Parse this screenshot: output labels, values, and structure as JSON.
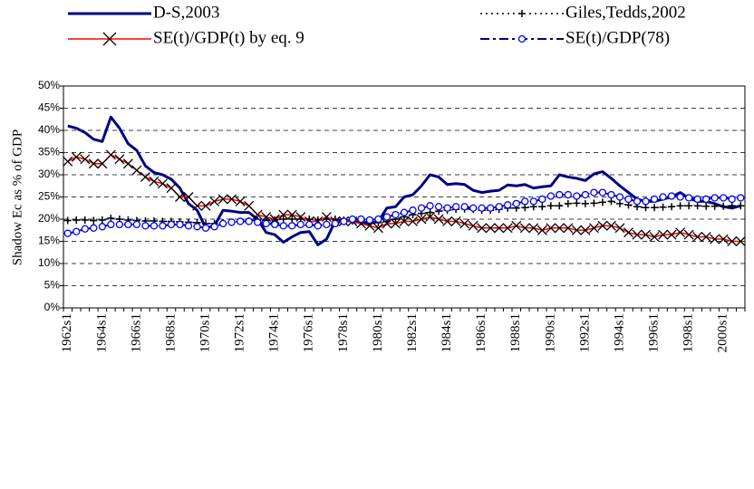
{
  "chart_data": {
    "type": "line",
    "y_label": "Shadow Ec as % of GDP",
    "legend": "top",
    "grid": true,
    "categories": [
      "1962s1",
      null,
      null,
      null,
      "1964s1",
      null,
      null,
      null,
      "1966s1",
      null,
      null,
      null,
      "1968s1",
      null,
      null,
      null,
      "1970s1",
      null,
      null,
      null,
      "1972s1",
      null,
      null,
      null,
      "1974s1",
      null,
      null,
      null,
      "1976s1",
      null,
      null,
      null,
      "1978s1",
      null,
      null,
      null,
      "1980s1",
      null,
      null,
      null,
      "1982s1",
      null,
      null,
      null,
      "1984s1",
      null,
      null,
      null,
      "1986s1",
      null,
      null,
      null,
      "1988s1",
      null,
      null,
      null,
      "1990s1",
      null,
      null,
      null,
      "1992s1",
      null,
      null,
      null,
      "1994s1",
      null,
      null,
      null,
      "1996s1",
      null,
      null,
      null,
      "1998s1",
      null,
      null,
      null,
      "2000s1",
      null,
      null
    ],
    "ylim": [
      0,
      50
    ],
    "yticks": [
      {
        "value": 0,
        "label": "0%"
      },
      {
        "value": 5,
        "label": "5%"
      },
      {
        "value": 10,
        "label": "10%"
      },
      {
        "value": 15,
        "label": "15%"
      },
      {
        "value": 20,
        "label": "20%"
      },
      {
        "value": 25,
        "label": "25%"
      },
      {
        "value": 30,
        "label": "30%"
      },
      {
        "value": 35,
        "label": "35%"
      },
      {
        "value": 40,
        "label": "40%"
      },
      {
        "value": 45,
        "label": "45%"
      },
      {
        "value": 50,
        "label": "50%"
      }
    ],
    "series": [
      {
        "name": "D-S,2003",
        "color": "#000080",
        "width": 3,
        "dash": "none",
        "marker": "none",
        "marker_color": "#000080",
        "values": [
          41,
          40.5,
          39.5,
          38,
          37.5,
          43,
          40.5,
          37,
          35.5,
          32,
          30.5,
          30,
          29,
          27,
          23.5,
          22,
          18,
          18.5,
          22,
          21.8,
          21.5,
          21.5,
          20,
          17,
          16.5,
          14.8,
          16,
          17,
          17.2,
          14.2,
          15.5,
          19.5,
          19.8,
          19.5,
          19.2,
          19,
          19.5,
          22.5,
          22.8,
          25,
          25.5,
          27.5,
          30,
          29.5,
          27.8,
          28,
          27.8,
          26.5,
          26,
          26.3,
          26.5,
          27.7,
          27.5,
          27.8,
          27,
          27.3,
          27.5,
          30,
          29.5,
          29.2,
          28.7,
          30.2,
          30.7,
          29.2,
          27.5,
          26,
          24.5,
          24,
          24,
          24.5,
          25,
          26,
          24.7,
          24,
          24,
          23.5,
          22.8,
          22.5,
          23
        ]
      },
      {
        "name": "Giles,Tedds,2002",
        "color": "#000000",
        "width": 1.5,
        "dash": "2,4",
        "marker": "plus",
        "marker_color": "#000000",
        "values": [
          19.7,
          19.8,
          19.8,
          19.7,
          19.8,
          20.2,
          20,
          19.8,
          19.7,
          19.6,
          19.6,
          19.5,
          19.5,
          19.4,
          19.3,
          19.2,
          19,
          19,
          19.2,
          19.3,
          19.5,
          19.6,
          19.8,
          19.8,
          19.8,
          20,
          20,
          20,
          20,
          19.8,
          20,
          20,
          19.8,
          19.6,
          19.5,
          19.3,
          19.2,
          19.5,
          20,
          20.5,
          21,
          21.3,
          21.5,
          21.8,
          22,
          22.2,
          22.3,
          22.2,
          22,
          22,
          22.2,
          22.5,
          22.5,
          22.6,
          22.8,
          22.8,
          23,
          23,
          23.5,
          23.6,
          23.5,
          23.6,
          23.8,
          24,
          23.5,
          23.2,
          22.8,
          22.6,
          22.6,
          22.7,
          22.8,
          23,
          23,
          23,
          22.9,
          22.9,
          22.9,
          23,
          23
        ]
      },
      {
        "name": "SE(t)/GDP(t) by eq. 9",
        "color": "#ff0000",
        "width": 1.5,
        "dash": "none",
        "marker": "cross",
        "marker_color": "#000000",
        "values": [
          33,
          34,
          33.5,
          32.5,
          32.5,
          34.5,
          33.5,
          32.5,
          31,
          29.5,
          28.5,
          28,
          27,
          25,
          25,
          23,
          23,
          24,
          24.5,
          24.5,
          24,
          23,
          21,
          20.5,
          20,
          21,
          21,
          20.5,
          19.5,
          19.5,
          20.5,
          19.5,
          19.5,
          19.5,
          19,
          18.5,
          18,
          19,
          19,
          19.5,
          19.5,
          20,
          20.5,
          20,
          19.5,
          19.5,
          19,
          18.5,
          18,
          18,
          18,
          18,
          18.5,
          18,
          18,
          17.5,
          18,
          18,
          18,
          17.5,
          17.5,
          18,
          18.5,
          18.5,
          18,
          17,
          16.5,
          16.5,
          16,
          16.5,
          16.5,
          17,
          16.5,
          16,
          16,
          15.5,
          15.5,
          15,
          15
        ]
      },
      {
        "name": "SE(t)/GDP(78)",
        "color": "#000080",
        "width": 2,
        "dash": "10,4,3,4",
        "marker": "circle",
        "marker_color": "#0000ff",
        "values": [
          16.8,
          17.2,
          17.8,
          18,
          18.3,
          18.8,
          18.8,
          18.8,
          18.8,
          18.5,
          18.5,
          18.5,
          18.8,
          18.8,
          18.5,
          18.3,
          18,
          18.3,
          19,
          19.3,
          19.5,
          19.5,
          19.3,
          19,
          18.8,
          18.5,
          18.5,
          18.8,
          18.8,
          18.5,
          18.8,
          19,
          19.5,
          20,
          20,
          19.8,
          20,
          20.5,
          21,
          21.5,
          22,
          22.5,
          23,
          22.8,
          22.5,
          22.8,
          22.8,
          22.5,
          22.5,
          22.5,
          22.8,
          23.2,
          23.5,
          24,
          24,
          24.5,
          25.2,
          25.5,
          25.5,
          25.2,
          25.5,
          26,
          26,
          25.5,
          25,
          24.5,
          24,
          24,
          24.5,
          25,
          25.2,
          25,
          24.8,
          24.5,
          24.5,
          24.8,
          24.8,
          24.5,
          24.8
        ]
      }
    ]
  }
}
